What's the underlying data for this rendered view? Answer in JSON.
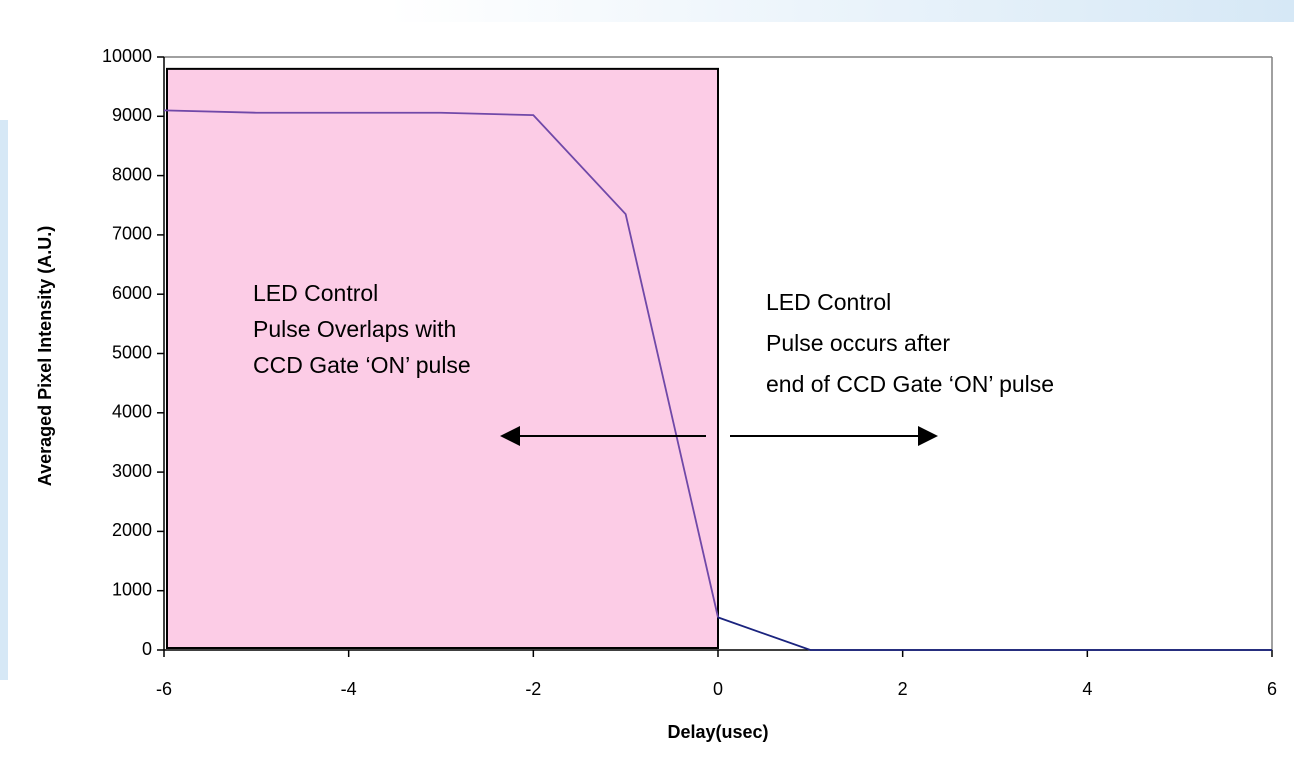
{
  "chart_data": {
    "type": "line",
    "xlabel": "Delay(usec)",
    "ylabel": "Averaged Pixel Intensity (A.U.)",
    "series": [
      {
        "color": "#7048a8",
        "x": [
          -6,
          -5,
          -4,
          -3,
          -2,
          -1,
          0
        ],
        "values": [
          9100,
          9060,
          9060,
          9060,
          9020,
          7350,
          550
        ]
      },
      {
        "color": "#1a237e",
        "x": [
          0,
          1,
          2,
          3,
          4,
          5,
          6
        ],
        "values": [
          550,
          0,
          0,
          0,
          0,
          0,
          0
        ]
      }
    ],
    "shaded_region": {
      "xlim": [
        -6,
        0
      ],
      "ylim": [
        0,
        9800
      ],
      "color": "#fccce6"
    },
    "annotations": [
      {
        "lines": [
          "LED Control",
          "Pulse Overlaps with",
          "CCD Gate ‘ON’ pulse"
        ]
      },
      {
        "lines": [
          "LED Control",
          "Pulse occurs after",
          "end of CCD Gate ‘ON’ pulse"
        ]
      }
    ],
    "xlim": [
      -6,
      6
    ],
    "xticks": [
      -6,
      -4,
      -2,
      0,
      2,
      4,
      6
    ],
    "ylim": [
      0,
      10000
    ],
    "yticks": [
      0,
      1000,
      2000,
      3000,
      4000,
      5000,
      6000,
      7000,
      8000,
      9000,
      10000
    ]
  }
}
